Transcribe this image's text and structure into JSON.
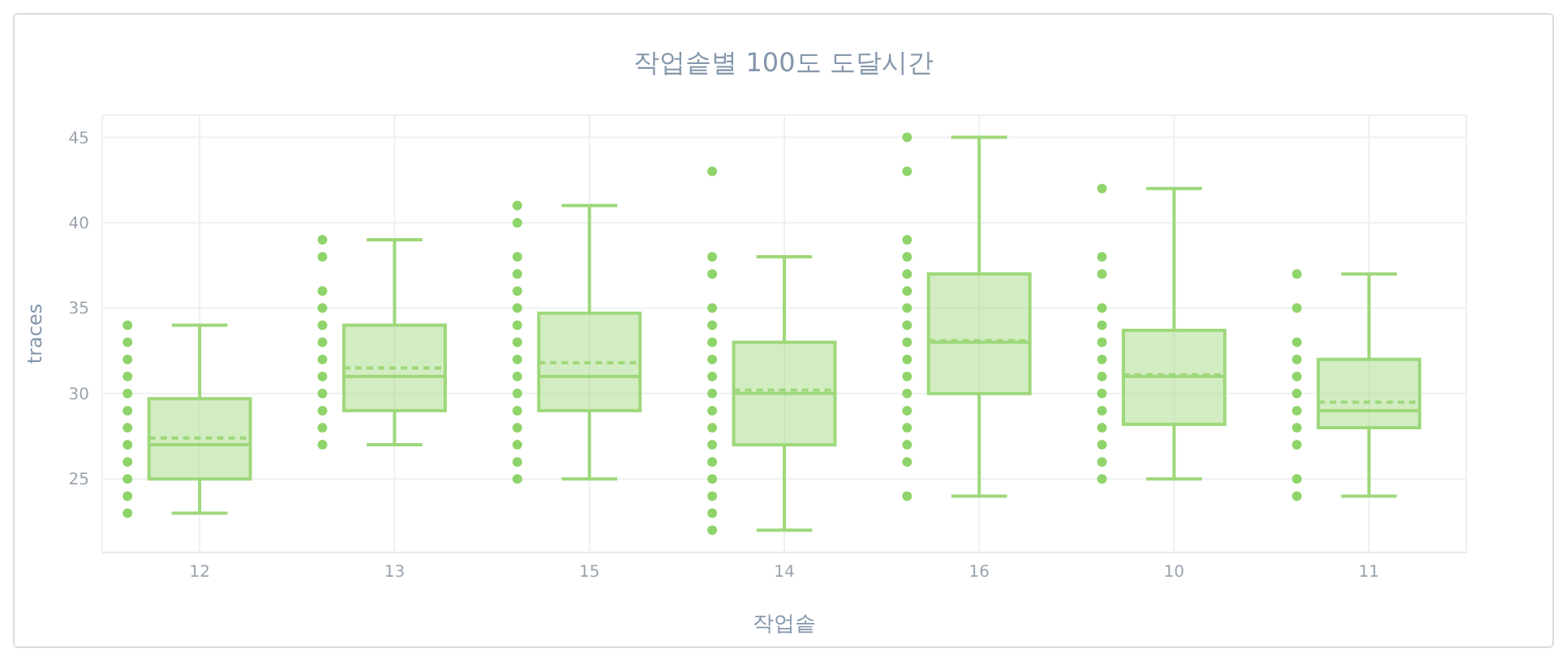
{
  "chart_data": {
    "type": "box",
    "title": "작업솥별 100도 도달시간",
    "xlabel": "작업솥",
    "ylabel": "traces",
    "categories": [
      "12",
      "13",
      "15",
      "14",
      "16",
      "10",
      "11"
    ],
    "color": "#9ed87a",
    "ylim": [
      20.7,
      46.3
    ],
    "yticks": [
      25,
      30,
      35,
      40,
      45
    ],
    "grid": true,
    "boxes": [
      {
        "low": 23,
        "q1": 25,
        "median": 27,
        "q3": 29.7,
        "high": 34,
        "mean": 27.4
      },
      {
        "low": 27,
        "q1": 29,
        "median": 31,
        "q3": 34,
        "high": 39,
        "mean": 31.5
      },
      {
        "low": 25,
        "q1": 29,
        "median": 31,
        "q3": 34.7,
        "high": 41,
        "mean": 31.8
      },
      {
        "low": 22,
        "q1": 27,
        "median": 30,
        "q3": 33,
        "high": 38,
        "mean": 30.2
      },
      {
        "low": 24,
        "q1": 30,
        "median": 33,
        "q3": 37,
        "high": 45,
        "mean": 33.1
      },
      {
        "low": 25,
        "q1": 28.2,
        "median": 31,
        "q3": 33.7,
        "high": 42,
        "mean": 31.1
      },
      {
        "low": 24,
        "q1": 28,
        "median": 29,
        "q3": 32,
        "high": 37,
        "mean": 29.5
      }
    ],
    "series": [
      {
        "type": "scatter",
        "color": "#8fd46a",
        "marker": "circle",
        "x": [
          "12",
          "12",
          "12",
          "12",
          "12",
          "12",
          "12",
          "12",
          "12",
          "12",
          "12",
          "12",
          "13",
          "13",
          "13",
          "13",
          "13",
          "13",
          "13",
          "13",
          "13",
          "13",
          "13",
          "13",
          "15",
          "15",
          "15",
          "15",
          "15",
          "15",
          "15",
          "15",
          "15",
          "15",
          "15",
          "15",
          "15",
          "15",
          "15",
          "15",
          "14",
          "14",
          "14",
          "14",
          "14",
          "14",
          "14",
          "14",
          "14",
          "14",
          "14",
          "14",
          "14",
          "14",
          "14",
          "14",
          "14",
          "16",
          "16",
          "16",
          "16",
          "16",
          "16",
          "16",
          "16",
          "16",
          "16",
          "16",
          "16",
          "16",
          "16",
          "16",
          "16",
          "16",
          "10",
          "10",
          "10",
          "10",
          "10",
          "10",
          "10",
          "10",
          "10",
          "10",
          "10",
          "10",
          "10",
          "10",
          "11",
          "11",
          "11",
          "11",
          "11",
          "11",
          "11",
          "11",
          "11",
          "11",
          "11"
        ],
        "values": [
          34,
          33,
          32,
          31,
          30,
          29,
          28,
          27,
          26,
          25,
          24,
          23,
          39,
          38,
          36,
          35,
          34,
          33,
          32,
          31,
          30,
          29,
          28,
          27,
          41,
          40,
          38,
          37,
          36,
          35,
          34,
          33,
          32,
          31,
          30,
          29,
          28,
          27,
          26,
          25,
          43,
          38,
          37,
          35,
          34,
          33,
          32,
          31,
          30,
          29,
          28,
          27,
          26,
          25,
          24,
          23,
          22,
          45,
          43,
          39,
          38,
          37,
          36,
          35,
          34,
          33,
          32,
          31,
          30,
          29,
          28,
          27,
          26,
          24,
          42,
          38,
          37,
          35,
          34,
          33,
          32,
          31,
          30,
          29,
          28,
          27,
          26,
          25,
          37,
          35,
          33,
          32,
          31,
          30,
          29,
          28,
          27,
          25,
          24
        ]
      }
    ]
  }
}
